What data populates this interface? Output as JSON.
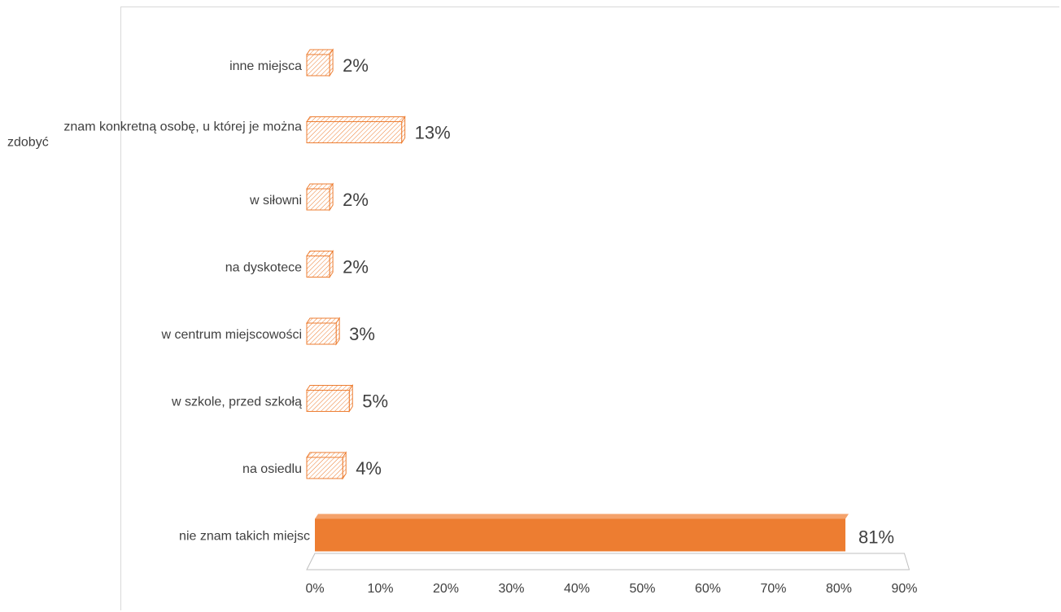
{
  "chart_data": {
    "type": "bar",
    "orientation": "horizontal",
    "style": "3d",
    "title": "",
    "xlabel": "",
    "ylabel": "",
    "categories": [
      "inne miejsca",
      "znam konkretną osobę, u której je można zdobyć",
      "w siłowni",
      "na dyskotece",
      "w centrum miejscowości",
      "w szkole, przed szkołą",
      "na osiedlu",
      "nie znam takich miejsc"
    ],
    "values": [
      2,
      13,
      2,
      2,
      3,
      5,
      4,
      81
    ],
    "value_labels": [
      "2%",
      "13%",
      "2%",
      "2%",
      "3%",
      "5%",
      "4%",
      "81%"
    ],
    "highlight_index": 7,
    "xlim": [
      0,
      90
    ],
    "tick_labels": [
      "0%",
      "10%",
      "20%",
      "30%",
      "40%",
      "50%",
      "60%",
      "70%",
      "80%",
      "90%"
    ],
    "grid": false,
    "legend": "none",
    "colors": {
      "highlight": "#ed7d31",
      "hatch": "#ed7d31",
      "text": "#404040",
      "floor": "#bfbfbf"
    }
  }
}
